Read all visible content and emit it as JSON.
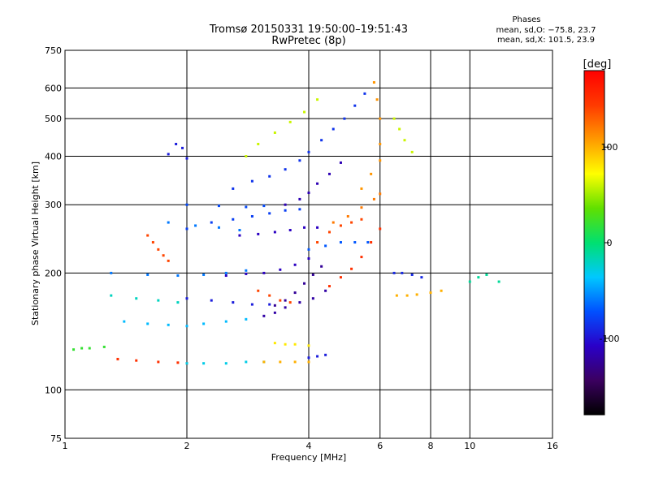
{
  "chart_data": {
    "type": "scatter",
    "title": "Tromsø 20150331 19:50:00–19:51:43",
    "subtitle": "RwPretec (8p)",
    "xlabel": "Frequency [MHz]",
    "ylabel": "Stationary phase Virtual Height [km]",
    "x_scale": "log2",
    "y_scale": "log",
    "xlim": [
      1,
      16
    ],
    "ylim": [
      75,
      750
    ],
    "x_ticks": [
      1,
      2,
      4,
      6,
      8,
      10,
      16
    ],
    "y_ticks": [
      75,
      100,
      200,
      300,
      400,
      500,
      600,
      750
    ],
    "grid": true,
    "legend": {
      "title": "Phases",
      "lines": [
        "mean, sd,O: −75.8, 23.7",
        "mean, sd,X: 101.5, 23.9"
      ],
      "placement": "top-right"
    },
    "colorbar": {
      "label": "[deg]",
      "range": [
        -180,
        180
      ],
      "ticks": [
        100,
        0,
        -100
      ],
      "colors": [
        "#000000",
        "#3b0060",
        "#2a00c8",
        "#0050ff",
        "#00c8ff",
        "#00e070",
        "#60e000",
        "#ffff00",
        "#ff9a00",
        "#ff3a00",
        "#ff0000"
      ]
    },
    "traces": [
      {
        "phase": -95,
        "points": [
          [
            1.8,
            405
          ],
          [
            1.88,
            430
          ],
          [
            1.95,
            420
          ],
          [
            2.0,
            395
          ]
        ]
      },
      {
        "phase": -85,
        "points": [
          [
            2.6,
            330
          ],
          [
            2.9,
            345
          ],
          [
            3.2,
            355
          ],
          [
            3.5,
            370
          ],
          [
            3.8,
            390
          ],
          [
            4.0,
            410
          ],
          [
            4.3,
            440
          ],
          [
            4.6,
            470
          ],
          [
            4.9,
            500
          ],
          [
            5.2,
            540
          ],
          [
            5.5,
            580
          ]
        ]
      },
      {
        "phase": -115,
        "points": [
          [
            3.5,
            300
          ],
          [
            3.8,
            310
          ],
          [
            4.0,
            322
          ],
          [
            4.2,
            340
          ],
          [
            4.5,
            360
          ],
          [
            4.8,
            385
          ]
        ]
      },
      {
        "phase": -80,
        "points": [
          [
            2.0,
            260
          ],
          [
            2.3,
            270
          ],
          [
            2.6,
            275
          ],
          [
            2.9,
            280
          ],
          [
            3.2,
            285
          ],
          [
            3.5,
            290
          ],
          [
            3.8,
            292
          ]
        ]
      },
      {
        "phase": -75,
        "points": [
          [
            2.0,
            300
          ],
          [
            2.4,
            298
          ],
          [
            2.8,
            296
          ],
          [
            3.1,
            298
          ]
        ]
      },
      {
        "phase": -60,
        "points": [
          [
            1.8,
            270
          ],
          [
            2.1,
            265
          ],
          [
            2.4,
            262
          ],
          [
            2.7,
            258
          ]
        ]
      },
      {
        "phase": -110,
        "points": [
          [
            2.7,
            250
          ],
          [
            3.0,
            252
          ],
          [
            3.3,
            255
          ],
          [
            3.6,
            258
          ],
          [
            3.9,
            262
          ],
          [
            4.2,
            262
          ]
        ]
      },
      {
        "phase": -70,
        "points": [
          [
            4.0,
            230
          ],
          [
            4.4,
            235
          ],
          [
            4.8,
            240
          ],
          [
            5.2,
            240
          ],
          [
            5.6,
            240
          ]
        ]
      },
      {
        "phase": -60,
        "points": [
          [
            1.3,
            200
          ],
          [
            1.6,
            198
          ],
          [
            1.9,
            197
          ],
          [
            2.2,
            198
          ],
          [
            2.5,
            200
          ],
          [
            2.8,
            203
          ]
        ]
      },
      {
        "phase": -110,
        "points": [
          [
            2.5,
            197
          ],
          [
            2.8,
            199
          ],
          [
            3.1,
            200
          ],
          [
            3.4,
            204
          ],
          [
            3.7,
            210
          ],
          [
            4.0,
            218
          ]
        ]
      },
      {
        "phase": -125,
        "points": [
          [
            3.3,
            165
          ],
          [
            3.5,
            170
          ],
          [
            3.7,
            178
          ],
          [
            3.9,
            188
          ],
          [
            4.1,
            198
          ],
          [
            4.3,
            208
          ]
        ]
      },
      {
        "phase": -120,
        "points": [
          [
            3.1,
            155
          ],
          [
            3.3,
            158
          ],
          [
            3.5,
            163
          ],
          [
            3.8,
            168
          ],
          [
            4.1,
            172
          ],
          [
            4.4,
            180
          ]
        ]
      },
      {
        "phase": 140,
        "points": [
          [
            3.0,
            180
          ],
          [
            3.2,
            175
          ],
          [
            3.4,
            170
          ],
          [
            3.6,
            168
          ]
        ]
      },
      {
        "phase": 150,
        "points": [
          [
            4.5,
            185
          ],
          [
            4.8,
            195
          ],
          [
            5.1,
            205
          ],
          [
            5.4,
            220
          ],
          [
            5.7,
            240
          ],
          [
            6.0,
            260
          ]
        ]
      },
      {
        "phase": 120,
        "points": [
          [
            4.6,
            270
          ],
          [
            5.0,
            280
          ],
          [
            5.4,
            295
          ],
          [
            5.8,
            310
          ],
          [
            6.0,
            320
          ]
        ]
      },
      {
        "phase": 110,
        "points": [
          [
            5.4,
            330
          ],
          [
            5.7,
            360
          ],
          [
            6.0,
            390
          ],
          [
            6.0,
            430
          ],
          [
            6.0,
            500
          ],
          [
            5.9,
            560
          ],
          [
            5.8,
            620
          ]
        ]
      },
      {
        "phase": 140,
        "points": [
          [
            4.2,
            240
          ],
          [
            4.5,
            255
          ],
          [
            4.8,
            265
          ],
          [
            5.1,
            270
          ],
          [
            5.4,
            275
          ]
        ]
      },
      {
        "phase": 150,
        "points": [
          [
            1.35,
            120
          ],
          [
            1.5,
            119
          ],
          [
            1.7,
            118
          ],
          [
            1.9,
            117.5
          ],
          [
            2.0,
            117
          ]
        ]
      },
      {
        "phase": -30,
        "points": [
          [
            2.0,
            117
          ],
          [
            2.2,
            117
          ],
          [
            2.5,
            117
          ],
          [
            2.8,
            118
          ],
          [
            3.1,
            118
          ]
        ]
      },
      {
        "phase": 100,
        "points": [
          [
            3.1,
            118
          ],
          [
            3.4,
            118
          ],
          [
            3.7,
            118
          ],
          [
            4.0,
            118
          ]
        ]
      },
      {
        "phase": -95,
        "points": [
          [
            4.0,
            121
          ],
          [
            4.2,
            122
          ],
          [
            4.4,
            123
          ]
        ]
      },
      {
        "phase": 20,
        "points": [
          [
            1.05,
            127
          ],
          [
            1.1,
            128
          ],
          [
            1.15,
            128
          ],
          [
            1.25,
            129
          ]
        ]
      },
      {
        "phase": -40,
        "points": [
          [
            1.4,
            150
          ],
          [
            1.6,
            148
          ],
          [
            1.8,
            147
          ],
          [
            2.0,
            146
          ],
          [
            2.2,
            148
          ],
          [
            2.5,
            150
          ],
          [
            2.8,
            152
          ]
        ]
      },
      {
        "phase": -95,
        "points": [
          [
            2.0,
            172
          ],
          [
            2.3,
            170
          ],
          [
            2.6,
            168
          ],
          [
            2.9,
            166
          ],
          [
            3.2,
            166
          ]
        ]
      },
      {
        "phase": 80,
        "points": [
          [
            3.3,
            132
          ],
          [
            3.5,
            131
          ],
          [
            3.7,
            131
          ],
          [
            4.0,
            130
          ]
        ]
      },
      {
        "phase": -20,
        "points": [
          [
            1.3,
            175
          ],
          [
            1.5,
            172
          ],
          [
            1.7,
            170
          ],
          [
            1.9,
            168
          ]
        ]
      },
      {
        "phase": 140,
        "points": [
          [
            1.6,
            250
          ],
          [
            1.65,
            240
          ],
          [
            1.7,
            230
          ],
          [
            1.75,
            222
          ],
          [
            1.8,
            215
          ]
        ]
      },
      {
        "phase": 60,
        "points": [
          [
            2.8,
            400
          ],
          [
            3.0,
            430
          ],
          [
            3.3,
            460
          ],
          [
            3.6,
            490
          ],
          [
            3.9,
            520
          ],
          [
            4.2,
            560
          ]
        ]
      },
      {
        "phase": 60,
        "points": [
          [
            6.5,
            500
          ],
          [
            6.7,
            470
          ],
          [
            6.9,
            440
          ],
          [
            7.2,
            410
          ]
        ]
      },
      {
        "phase": 100,
        "points": [
          [
            6.6,
            175
          ],
          [
            7.0,
            175
          ],
          [
            7.4,
            176
          ],
          [
            8.0,
            178
          ],
          [
            8.5,
            180
          ]
        ]
      },
      {
        "phase": -90,
        "points": [
          [
            6.5,
            200
          ],
          [
            6.8,
            200
          ],
          [
            7.2,
            198
          ],
          [
            7.6,
            195
          ]
        ]
      },
      {
        "phase": -10,
        "points": [
          [
            10.0,
            190
          ],
          [
            10.5,
            195
          ],
          [
            11.0,
            198
          ],
          [
            11.8,
            190
          ]
        ]
      }
    ]
  }
}
